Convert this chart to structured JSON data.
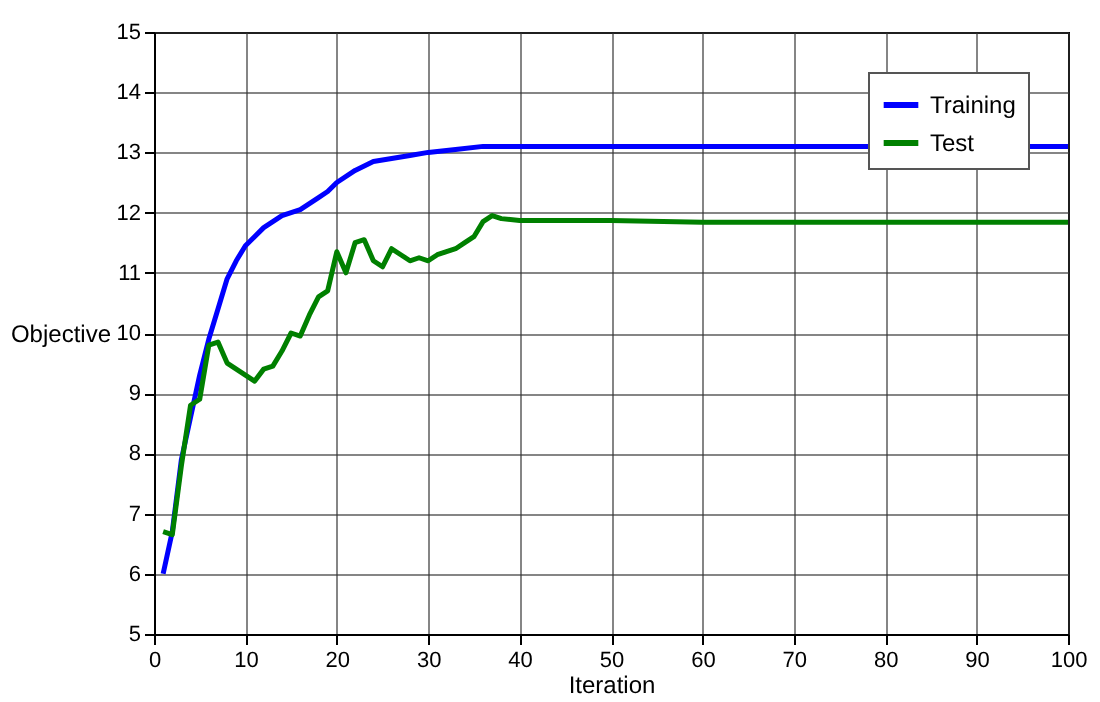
{
  "chart_data": {
    "type": "line",
    "xlabel": "Iteration",
    "ylabel": "Objective",
    "xlim": [
      0,
      100
    ],
    "xticks": [
      0,
      10,
      20,
      30,
      40,
      50,
      60,
      70,
      80,
      90,
      100
    ],
    "ylim": [
      5,
      15
    ],
    "yticks": [
      5,
      6,
      7,
      8,
      9,
      10,
      11,
      12,
      13,
      14,
      15
    ],
    "grid": true,
    "legend": "top right",
    "line_style": "solid",
    "series": [
      {
        "name": "Training",
        "color": "#0000ff",
        "x": [
          1,
          2,
          3,
          4,
          5,
          6,
          7,
          8,
          9,
          10,
          11,
          12,
          13,
          14,
          15,
          16,
          17,
          18,
          19,
          20,
          22,
          24,
          26,
          28,
          30,
          33,
          36,
          40,
          100
        ],
        "values": [
          6.0,
          6.7,
          7.9,
          8.6,
          9.3,
          9.9,
          10.4,
          10.9,
          11.2,
          11.45,
          11.6,
          11.75,
          11.85,
          11.95,
          12.0,
          12.05,
          12.15,
          12.25,
          12.35,
          12.5,
          12.7,
          12.85,
          12.9,
          12.95,
          13.0,
          13.05,
          13.1,
          13.1,
          13.1
        ]
      },
      {
        "name": "Test",
        "color": "#008000",
        "x": [
          1,
          2,
          3,
          4,
          5,
          6,
          7,
          8,
          9,
          10,
          11,
          12,
          13,
          14,
          15,
          16,
          17,
          18,
          19,
          20,
          21,
          22,
          23,
          24,
          25,
          26,
          27,
          28,
          29,
          30,
          31,
          32,
          33,
          34,
          35,
          36,
          37,
          38,
          40,
          50,
          60,
          100
        ],
        "values": [
          6.7,
          6.65,
          7.8,
          8.8,
          8.9,
          9.8,
          9.85,
          9.5,
          9.4,
          9.3,
          9.2,
          9.4,
          9.45,
          9.7,
          10.0,
          9.95,
          10.3,
          10.6,
          10.7,
          11.35,
          11.0,
          11.5,
          11.55,
          11.2,
          11.1,
          11.4,
          11.3,
          11.2,
          11.25,
          11.2,
          11.3,
          11.35,
          11.4,
          11.5,
          11.6,
          11.85,
          11.95,
          11.9,
          11.87,
          11.87,
          11.84,
          11.84
        ]
      }
    ]
  }
}
